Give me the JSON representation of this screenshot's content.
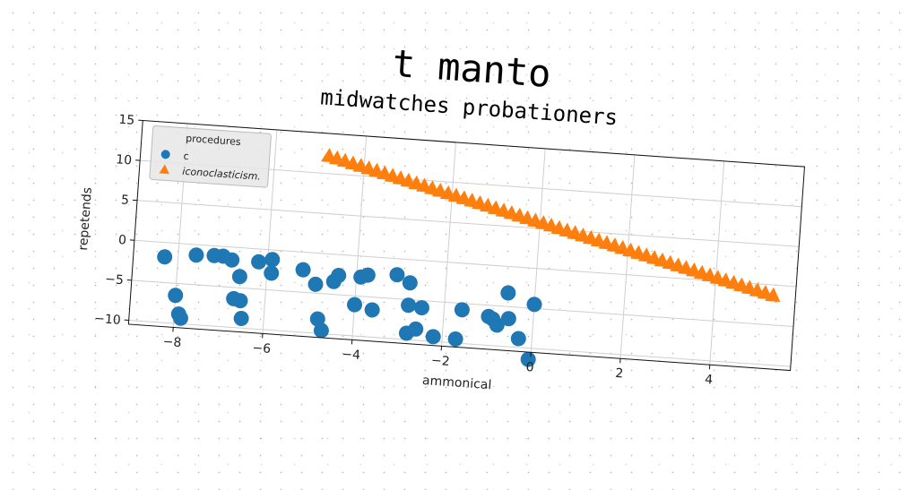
{
  "chart_data": {
    "type": "scatter",
    "title": "t manto",
    "subtitle": "midwatches probationers",
    "xlabel": "ammonical",
    "ylabel": "repetends",
    "xlim": [
      -9,
      5.8
    ],
    "ylim": [
      -10.5,
      15
    ],
    "xticks": [
      -8,
      -6,
      -4,
      -2,
      0,
      2,
      4
    ],
    "yticks": [
      -10,
      -5,
      0,
      5,
      10,
      15
    ],
    "grid": true,
    "legend": {
      "title": "procedures",
      "position": "top-left"
    },
    "series": [
      {
        "name": "c",
        "marker": "circle",
        "color": "#1f77b4",
        "points": [
          [
            -8.3,
            -1.8
          ],
          [
            -8.0,
            -6.5
          ],
          [
            -7.9,
            -8.8
          ],
          [
            -7.85,
            -9.3
          ],
          [
            -7.6,
            -1.3
          ],
          [
            -7.2,
            -1.2
          ],
          [
            -7.0,
            -1.2
          ],
          [
            -6.8,
            -1.6
          ],
          [
            -6.6,
            -3.6
          ],
          [
            -6.7,
            -6.4
          ],
          [
            -6.55,
            -6.6
          ],
          [
            -6.5,
            -8.8
          ],
          [
            -6.2,
            -1.6
          ],
          [
            -5.9,
            -1.2
          ],
          [
            -5.9,
            -2.9
          ],
          [
            -5.2,
            -2.2
          ],
          [
            -4.9,
            -3.9
          ],
          [
            -4.8,
            -8.2
          ],
          [
            -4.7,
            -9.6
          ],
          [
            -4.5,
            -3.4
          ],
          [
            -4.4,
            -2.6
          ],
          [
            -4.0,
            -6.1
          ],
          [
            -3.9,
            -2.6
          ],
          [
            -3.75,
            -2.3
          ],
          [
            -3.6,
            -6.6
          ],
          [
            -3.1,
            -2.0
          ],
          [
            -2.8,
            -2.9
          ],
          [
            -2.8,
            -5.7
          ],
          [
            -2.8,
            -9.2
          ],
          [
            -2.6,
            -8.6
          ],
          [
            -2.5,
            -5.9
          ],
          [
            -2.2,
            -9.4
          ],
          [
            -1.7,
            -9.5
          ],
          [
            -1.6,
            -5.8
          ],
          [
            -1.0,
            -6.4
          ],
          [
            -0.9,
            -6.7
          ],
          [
            -0.8,
            -7.4
          ],
          [
            -0.6,
            -3.3
          ],
          [
            -0.55,
            -6.5
          ],
          [
            -0.3,
            -8.9
          ],
          [
            -0.05,
            -11.4
          ],
          [
            0.0,
            -4.5
          ]
        ]
      },
      {
        "name": "iconoclasticism.",
        "marker": "triangle",
        "color": "#ff7f0e",
        "line": {
          "x_start": -4.8,
          "y_start": 12.2,
          "x_end": 5.3,
          "y_end": -1.3,
          "count": 57
        }
      }
    ]
  }
}
